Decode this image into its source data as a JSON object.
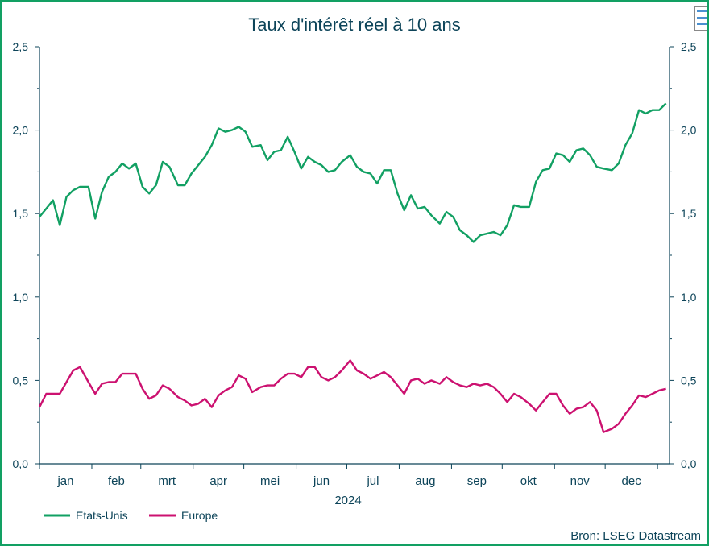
{
  "chart_data": {
    "type": "line",
    "title": "Taux d'intérêt réel à 10 ans",
    "xlabel": "2024",
    "x_tick_labels": [
      "jan",
      "feb",
      "mrt",
      "apr",
      "mei",
      "jun",
      "jul",
      "aug",
      "sep",
      "okt",
      "nov",
      "dec"
    ],
    "y_tick_labels": [
      "0,0",
      "0,5",
      "1,0",
      "1,5",
      "2,0",
      "2,5"
    ],
    "y_ticks": [
      0,
      0.5,
      1.0,
      1.5,
      2.0,
      2.5
    ],
    "ylim": [
      0,
      2.5
    ],
    "xlim": [
      "2024-01-01",
      "2025-01-08"
    ],
    "dual_y_axis": true,
    "grid": false,
    "legend_position": "bottom-left",
    "source": "Bron: LSEG Datastream",
    "x": [
      "2024-01-01",
      "2024-01-05",
      "2024-01-09",
      "2024-01-13",
      "2024-01-17",
      "2024-01-21",
      "2024-01-25",
      "2024-01-30",
      "2024-02-03",
      "2024-02-07",
      "2024-02-11",
      "2024-02-15",
      "2024-02-19",
      "2024-02-23",
      "2024-02-27",
      "2024-03-02",
      "2024-03-06",
      "2024-03-10",
      "2024-03-14",
      "2024-03-18",
      "2024-03-23",
      "2024-03-27",
      "2024-03-31",
      "2024-04-04",
      "2024-04-08",
      "2024-04-12",
      "2024-04-16",
      "2024-04-20",
      "2024-04-24",
      "2024-04-28",
      "2024-05-02",
      "2024-05-06",
      "2024-05-11",
      "2024-05-15",
      "2024-05-19",
      "2024-05-23",
      "2024-05-27",
      "2024-05-31",
      "2024-06-04",
      "2024-06-08",
      "2024-06-12",
      "2024-06-16",
      "2024-06-20",
      "2024-06-24",
      "2024-06-28",
      "2024-07-03",
      "2024-07-07",
      "2024-07-11",
      "2024-07-15",
      "2024-07-19",
      "2024-07-23",
      "2024-07-27",
      "2024-07-31",
      "2024-08-04",
      "2024-08-08",
      "2024-08-12",
      "2024-08-16",
      "2024-08-20",
      "2024-08-25",
      "2024-08-29",
      "2024-09-02",
      "2024-09-06",
      "2024-09-10",
      "2024-09-14",
      "2024-09-18",
      "2024-09-22",
      "2024-09-26",
      "2024-09-30",
      "2024-10-04",
      "2024-10-08",
      "2024-10-12",
      "2024-10-17",
      "2024-10-21",
      "2024-10-25",
      "2024-10-29",
      "2024-11-02",
      "2024-11-06",
      "2024-11-10",
      "2024-11-14",
      "2024-11-18",
      "2024-11-22",
      "2024-11-26",
      "2024-11-30",
      "2024-12-05",
      "2024-12-09",
      "2024-12-13",
      "2024-12-17",
      "2024-12-21",
      "2024-12-25",
      "2024-12-29",
      "2025-01-02",
      "2025-01-06"
    ],
    "series": [
      {
        "name": "Etats-Unis",
        "color": "#12a063",
        "values": [
          1.48,
          1.53,
          1.58,
          1.43,
          1.6,
          1.64,
          1.66,
          1.66,
          1.47,
          1.63,
          1.72,
          1.75,
          1.8,
          1.77,
          1.8,
          1.66,
          1.62,
          1.67,
          1.81,
          1.78,
          1.67,
          1.67,
          1.74,
          1.79,
          1.84,
          1.91,
          2.01,
          1.99,
          2.0,
          2.02,
          1.99,
          1.9,
          1.91,
          1.82,
          1.87,
          1.88,
          1.96,
          1.87,
          1.77,
          1.84,
          1.81,
          1.79,
          1.75,
          1.76,
          1.81,
          1.85,
          1.78,
          1.75,
          1.74,
          1.68,
          1.76,
          1.76,
          1.62,
          1.52,
          1.61,
          1.53,
          1.54,
          1.49,
          1.44,
          1.51,
          1.48,
          1.4,
          1.37,
          1.33,
          1.37,
          1.38,
          1.39,
          1.37,
          1.43,
          1.55,
          1.54,
          1.54,
          1.69,
          1.76,
          1.77,
          1.86,
          1.85,
          1.81,
          1.88,
          1.89,
          1.85,
          1.78,
          1.77,
          1.76,
          1.8,
          1.91,
          1.98,
          2.12,
          2.1,
          2.12,
          2.12,
          2.16
        ]
      },
      {
        "name": "Europe",
        "color": "#cc1170",
        "values": [
          0.34,
          0.42,
          0.42,
          0.42,
          0.49,
          0.56,
          0.58,
          0.49,
          0.42,
          0.48,
          0.49,
          0.49,
          0.54,
          0.54,
          0.54,
          0.45,
          0.39,
          0.41,
          0.47,
          0.45,
          0.4,
          0.38,
          0.35,
          0.36,
          0.39,
          0.34,
          0.41,
          0.44,
          0.46,
          0.53,
          0.51,
          0.43,
          0.46,
          0.47,
          0.47,
          0.51,
          0.54,
          0.54,
          0.52,
          0.58,
          0.58,
          0.52,
          0.5,
          0.52,
          0.56,
          0.62,
          0.56,
          0.54,
          0.51,
          0.53,
          0.55,
          0.52,
          0.47,
          0.42,
          0.5,
          0.51,
          0.48,
          0.5,
          0.48,
          0.52,
          0.49,
          0.47,
          0.46,
          0.48,
          0.47,
          0.48,
          0.46,
          0.42,
          0.37,
          0.42,
          0.4,
          0.36,
          0.32,
          0.37,
          0.42,
          0.42,
          0.35,
          0.3,
          0.33,
          0.34,
          0.37,
          0.32,
          0.19,
          0.21,
          0.24,
          0.3,
          0.35,
          0.41,
          0.4,
          0.42,
          0.44,
          0.45
        ]
      }
    ]
  }
}
